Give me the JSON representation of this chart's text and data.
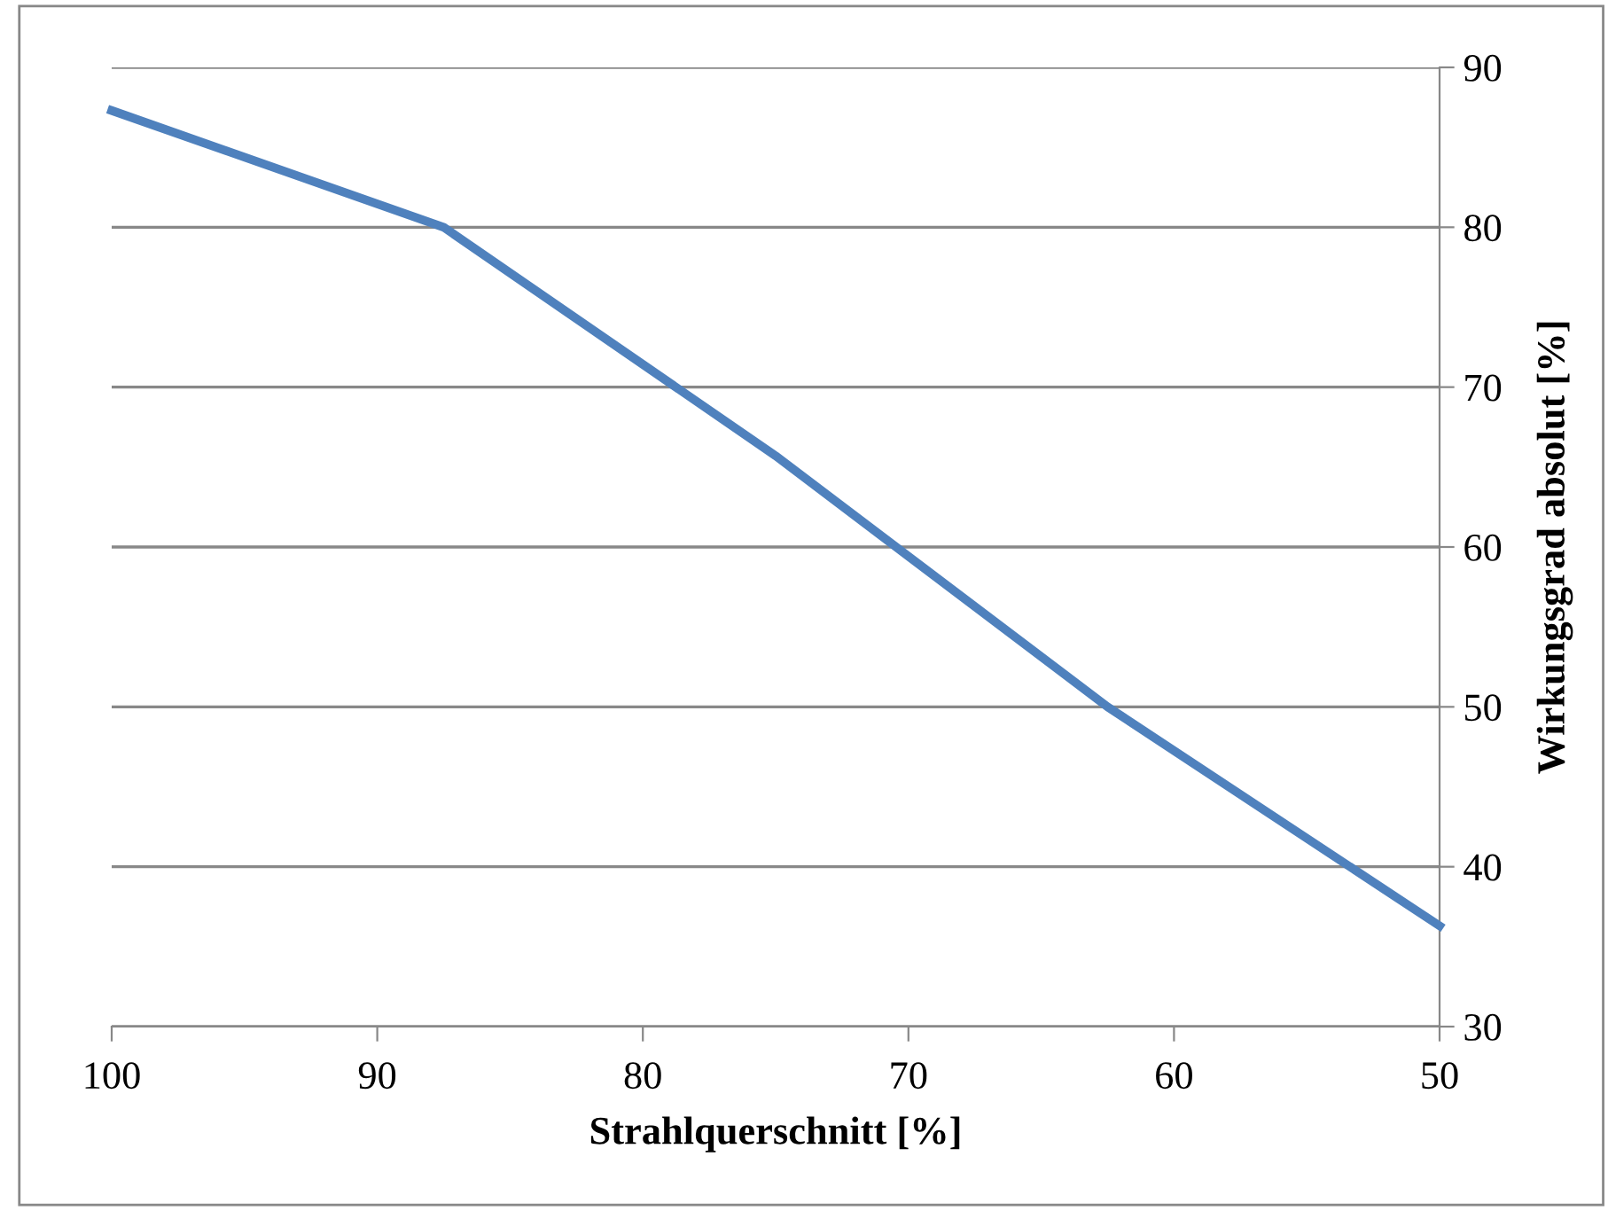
{
  "chart_data": {
    "type": "line",
    "xlabel": "Strahlquerschnitt [%]",
    "ylabel": "Wirkungsgrad absolut [%]",
    "x": [
      100,
      87.5,
      75,
      62.5,
      50
    ],
    "series": [
      {
        "color": "#4f81bd",
        "values": [
          87.3,
          80,
          65.7,
          50,
          36.3
        ]
      }
    ],
    "xlim": [
      100,
      50
    ],
    "xticks": [
      100,
      90,
      80,
      70,
      60,
      50
    ],
    "ylim": [
      30,
      90
    ],
    "yticks": [
      30,
      40,
      50,
      60,
      70,
      80,
      90
    ],
    "grid": "y",
    "legend": false,
    "marker": "none",
    "line_style": "solid"
  }
}
